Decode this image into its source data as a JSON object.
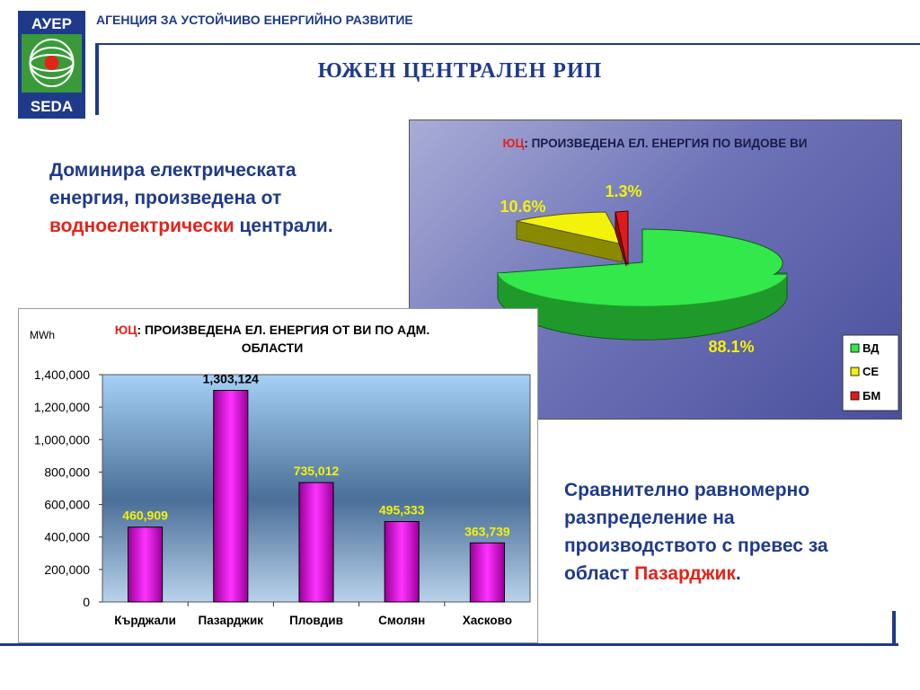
{
  "header": {
    "agency": "АГЕНЦИЯ ЗА УСТОЙЧИВО ЕНЕРГИЙНО РАЗВИТИЕ",
    "title": "ЮЖЕН ЦЕНТРАЛЕН РИП",
    "logo_top": "АУЕР",
    "logo_bottom": "SEDA"
  },
  "notes": {
    "note1_a": "Доминира електрическата енергия, произведена от ",
    "note1_b": "водноелектрически",
    "note1_c": " централи.",
    "note2_a": "Сравнително равномерно разпределение на производството с превес за област ",
    "note2_b": "Пазарджик",
    "note2_c": "."
  },
  "colors": {
    "navy": "#1f3a8a",
    "red": "#e2231a",
    "green": "#33e84a",
    "yellow": "#f2f20a",
    "bm_red": "#e01a1a",
    "bar": "#e600e6"
  },
  "chart_data": [
    {
      "type": "pie",
      "title_prefix": "ЮЦ",
      "title": ": ПРОИЗВЕДЕНА ЕЛ. ЕНЕРГИЯ ПО ВИДОВЕ ВИ",
      "legend_position": "bottom-right",
      "slices": [
        {
          "label": "ВД",
          "value": 88.1,
          "display": "88.1%"
        },
        {
          "label": "СЕ",
          "value": 10.6,
          "display": "10.6%"
        },
        {
          "label": "БМ",
          "value": 1.3,
          "display": "1.3%"
        }
      ]
    },
    {
      "type": "bar",
      "title_prefix": "ЮЦ",
      "title_line1": ": ПРОИЗВЕДЕНА ЕЛ. ЕНЕРГИЯ ОТ ВИ ПО АДМ.",
      "title_line2": "ОБЛАСТИ",
      "ylabel": "MWh",
      "ylim": [
        0,
        1400000
      ],
      "yticks": [
        0,
        200000,
        400000,
        600000,
        800000,
        1000000,
        1200000,
        1400000
      ],
      "ytick_labels": [
        "0",
        "200,000",
        "400,000",
        "600,000",
        "800,000",
        "1,000,000",
        "1,200,000",
        "1,400,000"
      ],
      "grid": false,
      "categories": [
        "Кърджали",
        "Пазарджик",
        "Пловдив",
        "Смолян",
        "Хасково"
      ],
      "values": [
        460909,
        1303124,
        735012,
        495333,
        363739
      ],
      "value_labels": [
        "460,909",
        "1,303,124",
        "735,012",
        "495,333",
        "363,739"
      ]
    }
  ]
}
